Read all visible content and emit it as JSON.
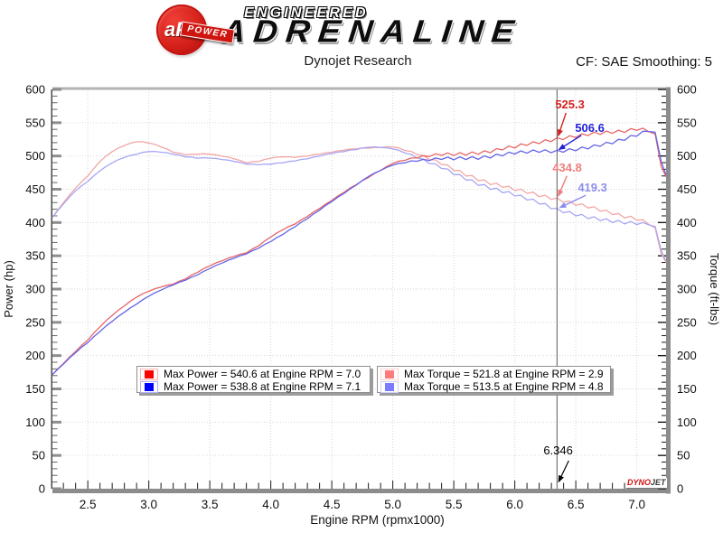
{
  "header": {
    "logo": {
      "badge_text": "aFe",
      "badge_reg": "®",
      "badge_banner": "POWER",
      "line1": "ENGINEERED",
      "line2": "ADRENALINE"
    },
    "title": "Dynojet Research",
    "cf_label": "CF: SAE Smoothing: 5"
  },
  "chart_data": {
    "type": "line",
    "xlabel": "Engine RPM (rpmx1000)",
    "ylabel_left": "Power (hp)",
    "ylabel_right": "Torque (ft-lbs)",
    "xlim": [
      2.21,
      7.24
    ],
    "ylim": [
      0,
      600
    ],
    "x_ticks": [
      2.5,
      3.0,
      3.5,
      4.0,
      4.5,
      5.0,
      5.5,
      6.0,
      6.5,
      7.0
    ],
    "x_tick_labels": [
      "2.5",
      "3.0",
      "3.5",
      "4.0",
      "4.5",
      "5.0",
      "5.5",
      "6.0",
      "6.5",
      "7.0"
    ],
    "x_minor_step": 0.1,
    "y_ticks": [
      0,
      50,
      100,
      150,
      200,
      250,
      300,
      350,
      400,
      450,
      500,
      550,
      600
    ],
    "y_minor_step": 10,
    "grid": true,
    "rpm": [
      2.21,
      2.3,
      2.4,
      2.5,
      2.6,
      2.7,
      2.8,
      2.9,
      3.0,
      3.1,
      3.2,
      3.3,
      3.4,
      3.5,
      3.6,
      3.7,
      3.8,
      3.9,
      4.0,
      4.1,
      4.2,
      4.3,
      4.4,
      4.5,
      4.6,
      4.7,
      4.8,
      4.9,
      5.0,
      5.1,
      5.2,
      5.3,
      5.4,
      5.5,
      5.6,
      5.7,
      5.8,
      5.9,
      6.0,
      6.1,
      6.2,
      6.346,
      6.5,
      6.6,
      6.7,
      6.8,
      6.9,
      7.0,
      7.05,
      7.1,
      7.15,
      7.2,
      7.24
    ],
    "series": [
      {
        "name": "torque-run-1",
        "unit": "ft-lbs",
        "color": "#f3a6a6",
        "values": [
          408,
          430,
          452,
          470,
          492,
          507,
          516,
          521.8,
          520,
          514,
          506,
          502,
          503,
          503,
          500,
          496,
          490,
          492,
          497,
          499,
          498,
          500,
          503,
          506,
          509,
          511,
          512,
          513,
          514,
          509,
          503,
          496,
          489,
          480,
          472,
          465,
          459,
          455,
          450,
          446,
          441,
          434.8,
          428,
          424,
          419,
          414,
          409,
          405.6,
          402,
          399,
          390,
          355,
          340
        ]
      },
      {
        "name": "torque-run-2",
        "unit": "ft-lbs",
        "color": "#a6a6f3",
        "values": [
          408,
          428,
          448,
          462,
          478,
          490,
          498,
          503,
          507,
          506,
          503,
          499,
          497,
          497,
          495,
          492,
          488,
          487,
          488,
          490,
          493,
          496,
          500,
          504,
          507,
          510,
          513.5,
          513,
          511,
          505,
          498,
          490,
          483,
          474,
          466,
          458,
          452,
          447,
          442,
          436,
          430,
          419.3,
          412,
          408,
          405,
          402,
          400,
          399,
          398,
          398.5,
          392,
          360,
          342
        ]
      },
      {
        "name": "power-run-1",
        "unit": "hp",
        "color": "#e86565",
        "values": [
          171.7,
          188.3,
          206.6,
          223.7,
          243.6,
          260.6,
          275.1,
          288.1,
          297.0,
          303.4,
          307.7,
          315.4,
          325.6,
          335.2,
          342.7,
          349.4,
          354.6,
          365.4,
          378.5,
          389.6,
          398.2,
          409.4,
          421.4,
          433.5,
          445.8,
          457.3,
          467.9,
          478.6,
          489.2,
          494.2,
          498.0,
          500.5,
          502.7,
          502.7,
          503.3,
          504.6,
          506.9,
          511.2,
          514.1,
          518.0,
          520.6,
          525.3,
          529.7,
          532.8,
          534.5,
          536.1,
          537.3,
          540.6,
          539.6,
          538.5,
          531.0,
          486.6,
          468.7
        ]
      },
      {
        "name": "power-run-2",
        "unit": "hp",
        "color": "#6565e8",
        "values": [
          171.7,
          187.4,
          204.7,
          219.9,
          236.6,
          251.9,
          265.5,
          277.7,
          289.6,
          298.7,
          306.4,
          313.5,
          321.7,
          331.2,
          339.3,
          346.6,
          353.1,
          361.7,
          371.7,
          382.5,
          394.2,
          406.1,
          418.9,
          431.8,
          444.0,
          456.4,
          469.3,
          478.6,
          486.5,
          490.4,
          493.1,
          494.4,
          496.5,
          496.4,
          496.8,
          497.0,
          499.1,
          502.2,
          505.0,
          506.3,
          507.6,
          506.6,
          509.9,
          512.6,
          516.6,
          520.5,
          525.5,
          531.8,
          535.0,
          538.8,
          533.7,
          493.9,
          471.4
        ]
      }
    ],
    "legend": [
      {
        "label": "Max Power = 540.6 at Engine RPM = 7.0",
        "color": "#ff0000",
        "border": "#ffb2b2"
      },
      {
        "label": "Max Power = 538.8 at Engine RPM = 7.1",
        "color": "#0000ff",
        "border": "#b2b2ff"
      },
      {
        "label": "Max Torque = 521.8 at Engine RPM = 2.9",
        "color": "#ff7b7b",
        "border": "#ffd0d0"
      },
      {
        "label": "Max Torque = 513.5 at Engine RPM = 4.8",
        "color": "#7b7bff",
        "border": "#d0d0ff"
      }
    ],
    "cursor": {
      "x": 6.346,
      "x_label": "6.346",
      "readouts": [
        {
          "series": "power-run-1",
          "value": 525.3,
          "display": "525.3",
          "color": "#d42222"
        },
        {
          "series": "power-run-2",
          "value": 506.6,
          "display": "506.6",
          "color": "#2222d4"
        },
        {
          "series": "torque-run-1",
          "value": 434.8,
          "display": "434.8",
          "color": "#ee7d7d"
        },
        {
          "series": "torque-run-2",
          "value": 419.3,
          "display": "419.3",
          "color": "#8d8dee"
        }
      ]
    },
    "watermark": {
      "part1": "DYNO",
      "part2": "JET"
    }
  }
}
